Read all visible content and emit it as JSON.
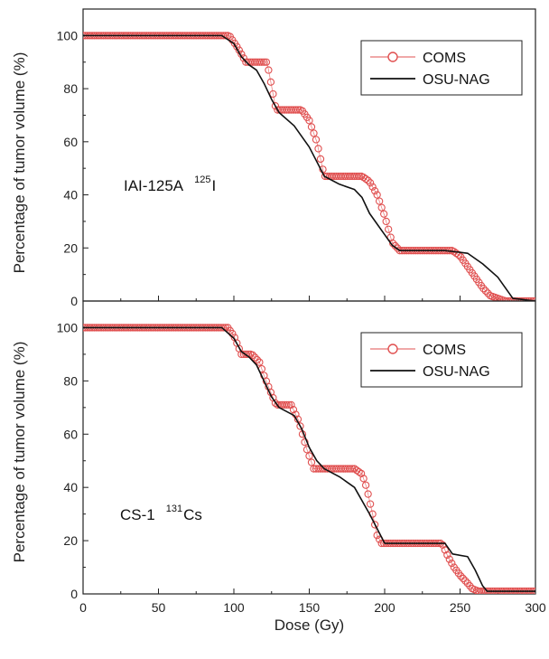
{
  "chart_data": [
    {
      "type": "line",
      "panel": "top",
      "annotation": {
        "label": "IAI-125A",
        "isotope_mass": "125",
        "isotope_symbol": "I"
      },
      "ylabel": "Percentage of tumor volume (%)",
      "xlabel": "",
      "xlim": [
        0,
        300
      ],
      "ylim": [
        0,
        110
      ],
      "yticks": [
        0,
        20,
        40,
        60,
        80,
        100
      ],
      "xticks": [
        0,
        50,
        100,
        150,
        200,
        250,
        300
      ],
      "legend": "top-right",
      "series": [
        {
          "name": "COMS",
          "marker": "open-circle",
          "color": "#e05050",
          "x": [
            0,
            97,
            103,
            108,
            122,
            128,
            145,
            150,
            155,
            160,
            185,
            190,
            195,
            200,
            205,
            210,
            245,
            250,
            255,
            260,
            265,
            270,
            275,
            280,
            300
          ],
          "y": [
            100,
            100,
            95,
            90,
            90,
            72,
            72,
            68,
            60,
            47,
            47,
            45,
            40,
            32,
            22,
            19,
            19,
            17,
            13,
            9,
            5,
            2,
            1,
            0,
            0
          ]
        },
        {
          "name": "OSU-NAG",
          "marker": "line",
          "color": "#111111",
          "x": [
            0,
            92,
            100,
            105,
            110,
            115,
            120,
            125,
            130,
            140,
            150,
            160,
            170,
            180,
            185,
            190,
            200,
            205,
            210,
            240,
            255,
            265,
            275,
            285,
            300
          ],
          "y": [
            100,
            100,
            97,
            92,
            89,
            87,
            82,
            76,
            71,
            66,
            58,
            47,
            44,
            42,
            39,
            33,
            25,
            21,
            19,
            19,
            18,
            14,
            9,
            1,
            0
          ]
        }
      ]
    },
    {
      "type": "line",
      "panel": "bottom",
      "annotation": {
        "label": "CS-1",
        "isotope_mass": "131",
        "isotope_symbol": "Cs"
      },
      "ylabel": "Percentage of tumor volume (%)",
      "xlabel": "Dose (Gy)",
      "xlim": [
        0,
        300
      ],
      "ylim": [
        0,
        110
      ],
      "yticks": [
        0,
        20,
        40,
        60,
        80,
        100
      ],
      "xticks": [
        0,
        50,
        100,
        150,
        200,
        250,
        300
      ],
      "legend": "top-right",
      "series": [
        {
          "name": "COMS",
          "marker": "open-circle",
          "color": "#e05050",
          "x": [
            0,
            96,
            100,
            105,
            112,
            117,
            120,
            125,
            128,
            138,
            143,
            148,
            153,
            157,
            180,
            185,
            188,
            192,
            195,
            198,
            202,
            238,
            242,
            246,
            250,
            255,
            258,
            262,
            300
          ],
          "y": [
            100,
            100,
            97,
            90,
            90,
            87,
            82,
            75,
            71,
            71,
            65,
            55,
            47,
            47,
            47,
            45,
            40,
            30,
            22,
            19,
            19,
            19,
            14,
            10,
            7,
            4,
            2,
            1,
            1
          ]
        },
        {
          "name": "OSU-NAG",
          "marker": "line",
          "color": "#111111",
          "x": [
            0,
            92,
            100,
            105,
            110,
            115,
            120,
            125,
            130,
            140,
            145,
            150,
            155,
            160,
            170,
            180,
            190,
            200,
            240,
            245,
            255,
            260,
            265,
            268,
            300
          ],
          "y": [
            100,
            100,
            96,
            91,
            89,
            86,
            80,
            74,
            70,
            67,
            62,
            55,
            50,
            47,
            44,
            40,
            30,
            19,
            19,
            15,
            14,
            9,
            3,
            1,
            1
          ]
        }
      ]
    }
  ]
}
